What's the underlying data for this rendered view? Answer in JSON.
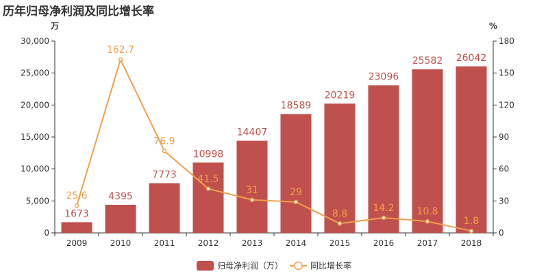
{
  "chart_data": {
    "type": "bar",
    "title": "历年归母净利润及同比增长率",
    "categories": [
      "2009",
      "2010",
      "2011",
      "2012",
      "2013",
      "2014",
      "2015",
      "2016",
      "2017",
      "2018"
    ],
    "series": [
      {
        "name": "归母净利润（万）",
        "type": "bar",
        "axis": "left",
        "values": [
          1673,
          4395,
          7773,
          10998,
          14407,
          18589,
          20219,
          23096,
          25582,
          26042
        ]
      },
      {
        "name": "同比增长率",
        "type": "line",
        "axis": "right",
        "values": [
          25.6,
          162.7,
          76.9,
          41.5,
          31,
          29,
          8.8,
          14.2,
          10.8,
          1.8
        ]
      }
    ],
    "y_left": {
      "unit": "万",
      "ylim": [
        0,
        30000
      ],
      "ticks": [
        0,
        5000,
        10000,
        15000,
        20000,
        25000,
        30000
      ],
      "tick_labels": [
        "0",
        "5,000",
        "10,000",
        "15,000",
        "20,000",
        "25,000",
        "30,000"
      ]
    },
    "y_right": {
      "unit": "%",
      "ylim": [
        0,
        180
      ],
      "ticks": [
        0,
        30,
        60,
        90,
        120,
        150,
        180
      ],
      "tick_labels": [
        "0",
        "30",
        "60",
        "90",
        "120",
        "150",
        "180"
      ]
    },
    "legend_position": "bottom-center",
    "grid": false
  },
  "colors": {
    "bar": "#c0504d",
    "line": "#f0a04b",
    "axis": "#333333"
  }
}
